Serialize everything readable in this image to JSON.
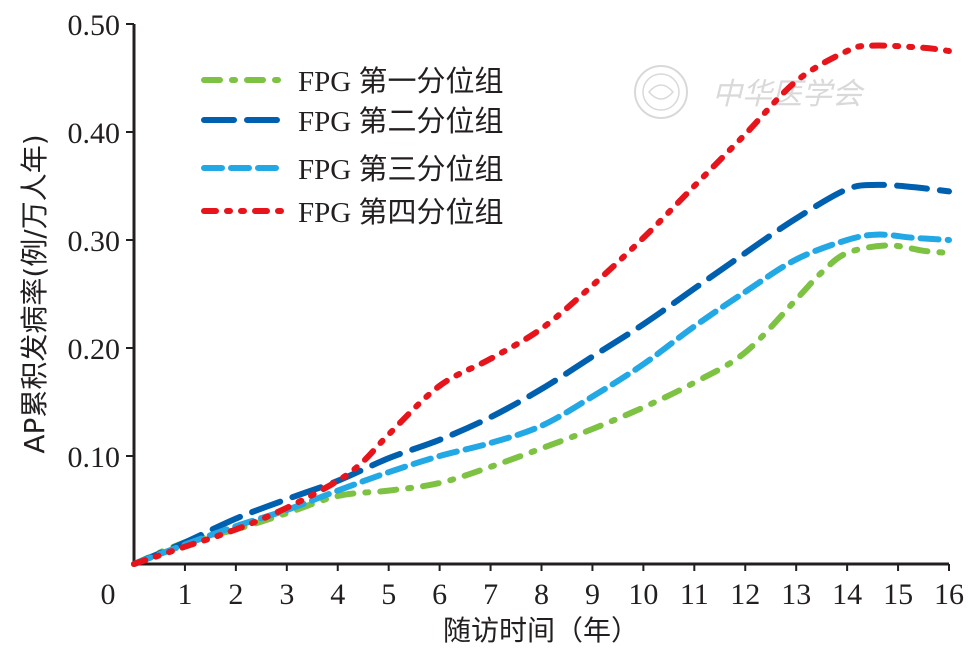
{
  "chart_data": {
    "type": "line",
    "xlabel": "随访时间（年）",
    "ylabel": "AP累积发病率(例/万人年)",
    "xlim": [
      0,
      16
    ],
    "ylim": [
      0,
      0.5
    ],
    "x_ticks": [
      "0",
      "1",
      "2",
      "3",
      "4",
      "5",
      "6",
      "7",
      "8",
      "9",
      "10",
      "11",
      "12",
      "13",
      "14",
      "15",
      "16"
    ],
    "y_ticks": [
      "0.10",
      "0.20",
      "0.30",
      "0.40",
      "0.50"
    ],
    "y_tick_values": [
      0.1,
      0.2,
      0.3,
      0.4,
      0.5
    ],
    "grid": false,
    "legend_position": "top-left",
    "series": [
      {
        "name": "FPG 第一分位组",
        "color": "#7dc242",
        "dash": "dashdot",
        "points": [
          [
            0,
            0
          ],
          [
            1,
            0.02
          ],
          [
            2,
            0.032
          ],
          [
            3,
            0.047
          ],
          [
            4,
            0.063
          ],
          [
            5,
            0.068
          ],
          [
            6,
            0.075
          ],
          [
            7,
            0.09
          ],
          [
            8,
            0.107
          ],
          [
            9,
            0.125
          ],
          [
            10,
            0.145
          ],
          [
            11,
            0.168
          ],
          [
            12,
            0.196
          ],
          [
            13,
            0.245
          ],
          [
            13.5,
            0.27
          ],
          [
            14,
            0.288
          ],
          [
            14.8,
            0.295
          ],
          [
            15.5,
            0.29
          ],
          [
            16,
            0.288
          ]
        ]
      },
      {
        "name": "FPG 第二分位组",
        "color": "#0060b0",
        "dash": "longdash",
        "points": [
          [
            0,
            0
          ],
          [
            1,
            0.02
          ],
          [
            2,
            0.042
          ],
          [
            3,
            0.06
          ],
          [
            4,
            0.077
          ],
          [
            5,
            0.098
          ],
          [
            6,
            0.115
          ],
          [
            7,
            0.136
          ],
          [
            8,
            0.162
          ],
          [
            9,
            0.192
          ],
          [
            10,
            0.222
          ],
          [
            11,
            0.255
          ],
          [
            12,
            0.288
          ],
          [
            13,
            0.32
          ],
          [
            14,
            0.347
          ],
          [
            14.6,
            0.351
          ],
          [
            15.3,
            0.349
          ],
          [
            16,
            0.345
          ]
        ]
      },
      {
        "name": "FPG 第三分位组",
        "color": "#23a8e6",
        "dash": "dash",
        "points": [
          [
            0,
            0
          ],
          [
            1,
            0.018
          ],
          [
            2,
            0.035
          ],
          [
            3,
            0.05
          ],
          [
            4,
            0.068
          ],
          [
            5,
            0.085
          ],
          [
            6,
            0.1
          ],
          [
            7,
            0.112
          ],
          [
            8,
            0.128
          ],
          [
            9,
            0.155
          ],
          [
            10,
            0.185
          ],
          [
            11,
            0.22
          ],
          [
            12,
            0.252
          ],
          [
            13,
            0.282
          ],
          [
            14,
            0.3
          ],
          [
            14.6,
            0.305
          ],
          [
            15.3,
            0.302
          ],
          [
            16,
            0.3
          ]
        ]
      },
      {
        "name": "FPG 第四分位组",
        "color": "#e8141b",
        "dash": "dashdotdot",
        "points": [
          [
            0,
            0
          ],
          [
            1,
            0.016
          ],
          [
            2,
            0.032
          ],
          [
            3,
            0.052
          ],
          [
            4,
            0.077
          ],
          [
            4.5,
            0.095
          ],
          [
            5,
            0.12
          ],
          [
            6,
            0.165
          ],
          [
            7,
            0.19
          ],
          [
            8,
            0.218
          ],
          [
            9,
            0.258
          ],
          [
            10,
            0.302
          ],
          [
            11,
            0.35
          ],
          [
            12,
            0.398
          ],
          [
            13,
            0.447
          ],
          [
            14,
            0.475
          ],
          [
            14.5,
            0.48
          ],
          [
            15.5,
            0.478
          ],
          [
            16,
            0.475
          ]
        ]
      }
    ]
  },
  "watermark": {
    "text": "中华医学会",
    "color": "#d9d9d9"
  }
}
